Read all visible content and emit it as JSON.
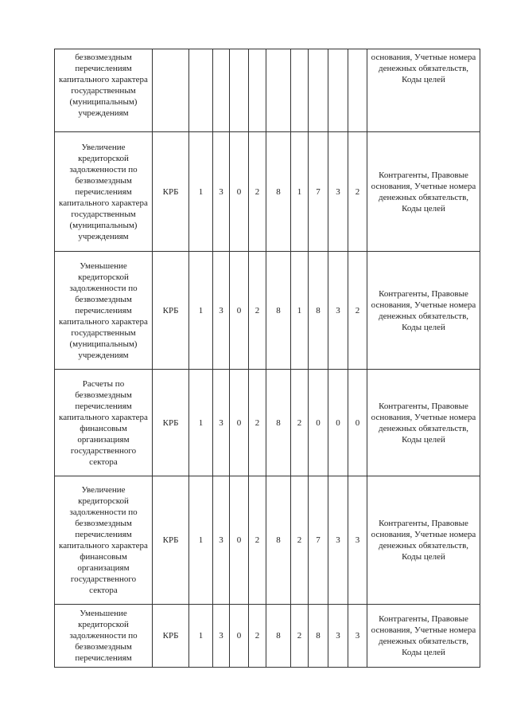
{
  "table": {
    "rows": [
      {
        "name": "безвозмездным перечислениям капитального характера государственным (муниципальным) учреждениям",
        "type": "",
        "digits": [
          "",
          "",
          "",
          "",
          "",
          "",
          "",
          "",
          ""
        ],
        "analytics": "основания, Учетные номера денежных обязательств, Коды целей"
      },
      {
        "name": "Увеличение кредиторской задолженности по безвозмездным перечислениям капитального характера государственным (муниципальным) учреждениям",
        "type": "КРБ",
        "digits": [
          "1",
          "3",
          "0",
          "2",
          "8",
          "1",
          "7",
          "3",
          "2"
        ],
        "analytics": "Контрагенты, Правовые основания, Учетные номера денежных обязательств, Коды целей"
      },
      {
        "name": "Уменьшение кредиторской задолженности по безвозмездным перечислениям капитального характера государственным (муниципальным) учреждениям",
        "type": "КРБ",
        "digits": [
          "1",
          "3",
          "0",
          "2",
          "8",
          "1",
          "8",
          "3",
          "2"
        ],
        "analytics": "Контрагенты, Правовые основания, Учетные номера денежных обязательств, Коды целей"
      },
      {
        "name": "Расчеты по безвозмездным перечислениям капитального характера финансовым организациям государственного сектора",
        "type": "КРБ",
        "digits": [
          "1",
          "3",
          "0",
          "2",
          "8",
          "2",
          "0",
          "0",
          "0"
        ],
        "analytics": "Контрагенты, Правовые основания, Учетные номера денежных обязательств, Коды целей"
      },
      {
        "name": "Увеличение кредиторской задолженности по безвозмездным перечислениям капитального характера финансовым организациям государственного сектора",
        "type": "КРБ",
        "digits": [
          "1",
          "3",
          "0",
          "2",
          "8",
          "2",
          "7",
          "3",
          "3"
        ],
        "analytics": "Контрагенты, Правовые основания, Учетные номера денежных обязательств, Коды целей"
      },
      {
        "name": "Уменьшение кредиторской задолженности по безвозмездным перечислениям",
        "type": "КРБ",
        "digits": [
          "1",
          "3",
          "0",
          "2",
          "8",
          "2",
          "8",
          "3",
          "3"
        ],
        "analytics": "Контрагенты, Правовые основания, Учетные номера денежных обязательств, Коды целей"
      }
    ]
  }
}
